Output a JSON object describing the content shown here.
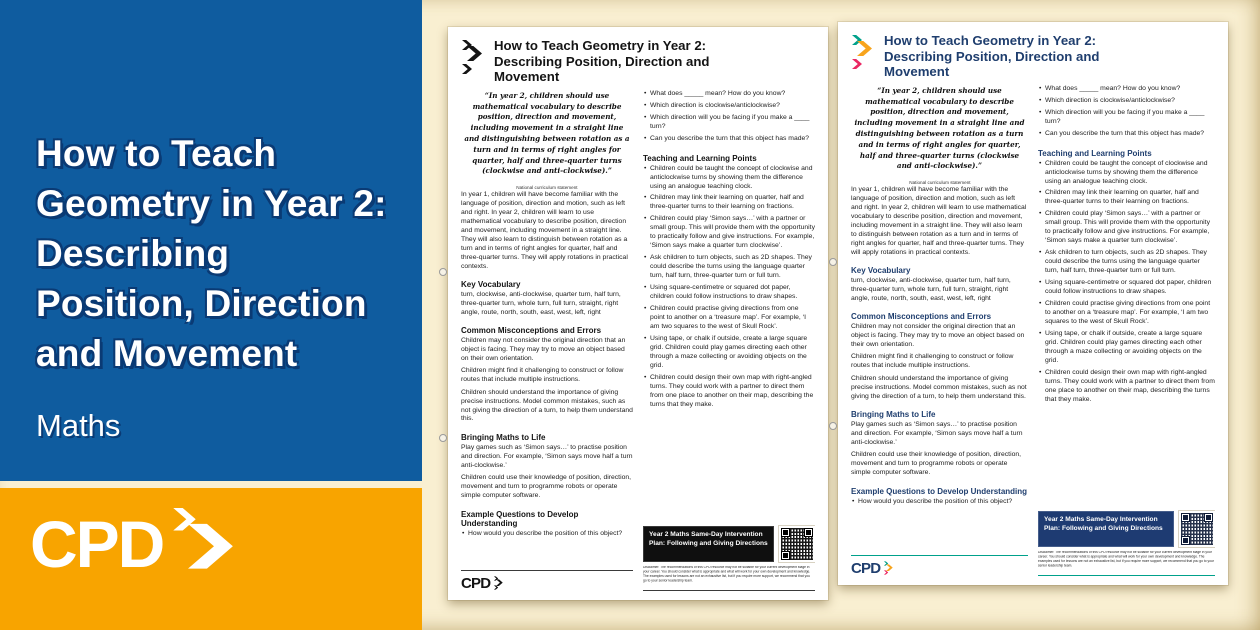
{
  "banner": {
    "title": "How to Teach Geometry in Year 2: Describing Position, Direction and Movement",
    "subject": "Maths",
    "logo": "CPD"
  },
  "page": {
    "title": "How to Teach Geometry in Year 2: Describing Position, Direction and Movement",
    "quote": "“In year 2, children should use mathematical vocabulary to describe position, direction and movement, including movement in a straight line and distinguishing between rotation as a turn and in terms of right angles for quarter, half and three-quarter turns (clockwise and anti-clockwise).”",
    "quote_caption": "National curriculum statement",
    "intro": "In year 1, children will have become familiar with the language of position, direction and motion, such as left and right. In year 2, children will learn to use mathematical vocabulary to describe position, direction and movement, including movement in a straight line. They will also learn to distinguish between rotation as a turn and in terms of right angles for quarter, half and three-quarter turns. They will apply rotations in practical contexts.",
    "key_vocabulary": {
      "heading": "Key Vocabulary",
      "text": "turn, clockwise, anti-clockwise, quarter turn, half turn, three-quarter turn, whole turn, full turn, straight, right angle, route, north, south, east, west, left, right"
    },
    "misconceptions": {
      "heading": "Common Misconceptions and Errors",
      "paragraphs": [
        "Children may not consider the original direction that an object is facing. They may try to move an object based on their own orientation.",
        "Children might find it challenging to construct or follow routes that include multiple instructions.",
        "Children should understand the importance of giving precise instructions. Model common mistakes, such as not giving the direction of a turn, to help them understand this."
      ]
    },
    "bringing_maths": {
      "heading": "Bringing Maths to Life",
      "paragraphs": [
        "Play games such as ‘Simon says…’ to practise position and direction. For example, ‘Simon says move half a turn anti-clockwise.’",
        "Children could use their knowledge of position, direction, movement and turn to programme robots or operate simple computer software."
      ]
    },
    "example_questions": {
      "heading": "Example Questions to Develop Understanding",
      "left_bullets": [
        "How would you describe the position of this object?"
      ],
      "right_bullets": [
        "What does _____ mean? How do you know?",
        "Which direction is clockwise/anticlockwise?",
        "Which direction will you be facing if you make a ____ turn?",
        "Can you describe the turn that this object has made?"
      ]
    },
    "teaching_points": {
      "heading": "Teaching and Learning Points",
      "bullets": [
        "Children could be taught the concept of clockwise and anticlockwise turns by showing them the difference using an analogue teaching clock.",
        "Children may link their learning on quarter, half and three-quarter turns to their learning on fractions.",
        "Children could play ‘Simon says…’ with a partner or small group. This will provide them with the opportunity to practically follow and give instructions. For example, ‘Simon says make a quarter turn clockwise’.",
        "Ask children to turn objects, such as 2D shapes. They could describe the turns using the language quarter turn, half turn, three-quarter turn or full turn.",
        "Using square-centimetre or squared dot paper, children could follow instructions to draw shapes.",
        "Children could practise giving directions from one point to another on a ‘treasure map’. For example, ‘I am two squares to the west of Skull Rock’.",
        "Using tape, or chalk if outside, create a large square grid. Children could play games directing each other through a maze collecting or avoiding objects on the grid.",
        "Children could design their own map with right-angled turns. They could work with a partner to direct them from one place to another on their map, describing the turns that they make."
      ]
    },
    "intervention": {
      "label": "Year 2 Maths Same-Day Intervention Plan: Following and Giving Directions"
    },
    "disclaimer": "Disclaimer: The recommendations of this CPD resource may not be suitable for your current development stage in your career. You should consider what is appropriate and what will work for your own development and knowledge. The examples used for lessons are not an exhaustive list, but if you require more support, we recommend that you go to your senior leadership team.",
    "footer_logo": "CPD"
  },
  "colors": {
    "banner_blue": "#0F5C9F",
    "banner_orange": "#F8A400",
    "background_cream": "#F9EFD1",
    "brand_navy": "#1F3E6E",
    "brand_teal": "#00A18B",
    "brand_chevron_orange": "#F7A41D",
    "brand_pink": "#EA2863"
  }
}
